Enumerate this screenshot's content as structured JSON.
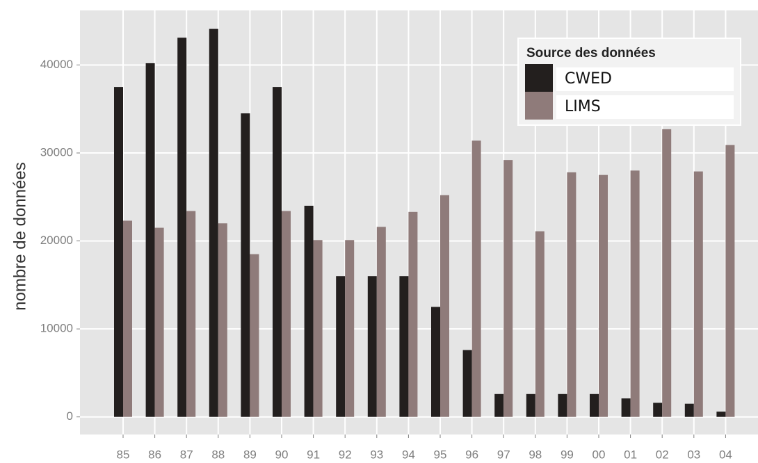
{
  "chart_data": {
    "type": "bar",
    "y_label": "nombre de données",
    "legend_title": "Source des données",
    "legend_position": "top-right",
    "grid": true,
    "categories": [
      "85",
      "86",
      "87",
      "88",
      "89",
      "90",
      "91",
      "92",
      "93",
      "94",
      "95",
      "96",
      "97",
      "98",
      "99",
      "00",
      "01",
      "02",
      "03",
      "04"
    ],
    "series": [
      {
        "name": "CWED",
        "color": "#231f1e",
        "values": [
          37500,
          40200,
          43100,
          44100,
          34500,
          37500,
          24000,
          16000,
          16000,
          16000,
          12500,
          7600,
          2600,
          2600,
          2600,
          2600,
          2100,
          1600,
          1500,
          600
        ]
      },
      {
        "name": "LIMS",
        "color": "#8f7b7a",
        "values": [
          22300,
          21500,
          23400,
          22000,
          18500,
          23400,
          20100,
          20100,
          21600,
          23300,
          25200,
          31400,
          29200,
          21100,
          27800,
          27500,
          28000,
          32700,
          27900,
          30900
        ]
      }
    ],
    "ylim": [
      -2000,
      46200
    ],
    "yticks": [
      0,
      10000,
      20000,
      30000,
      40000
    ]
  }
}
